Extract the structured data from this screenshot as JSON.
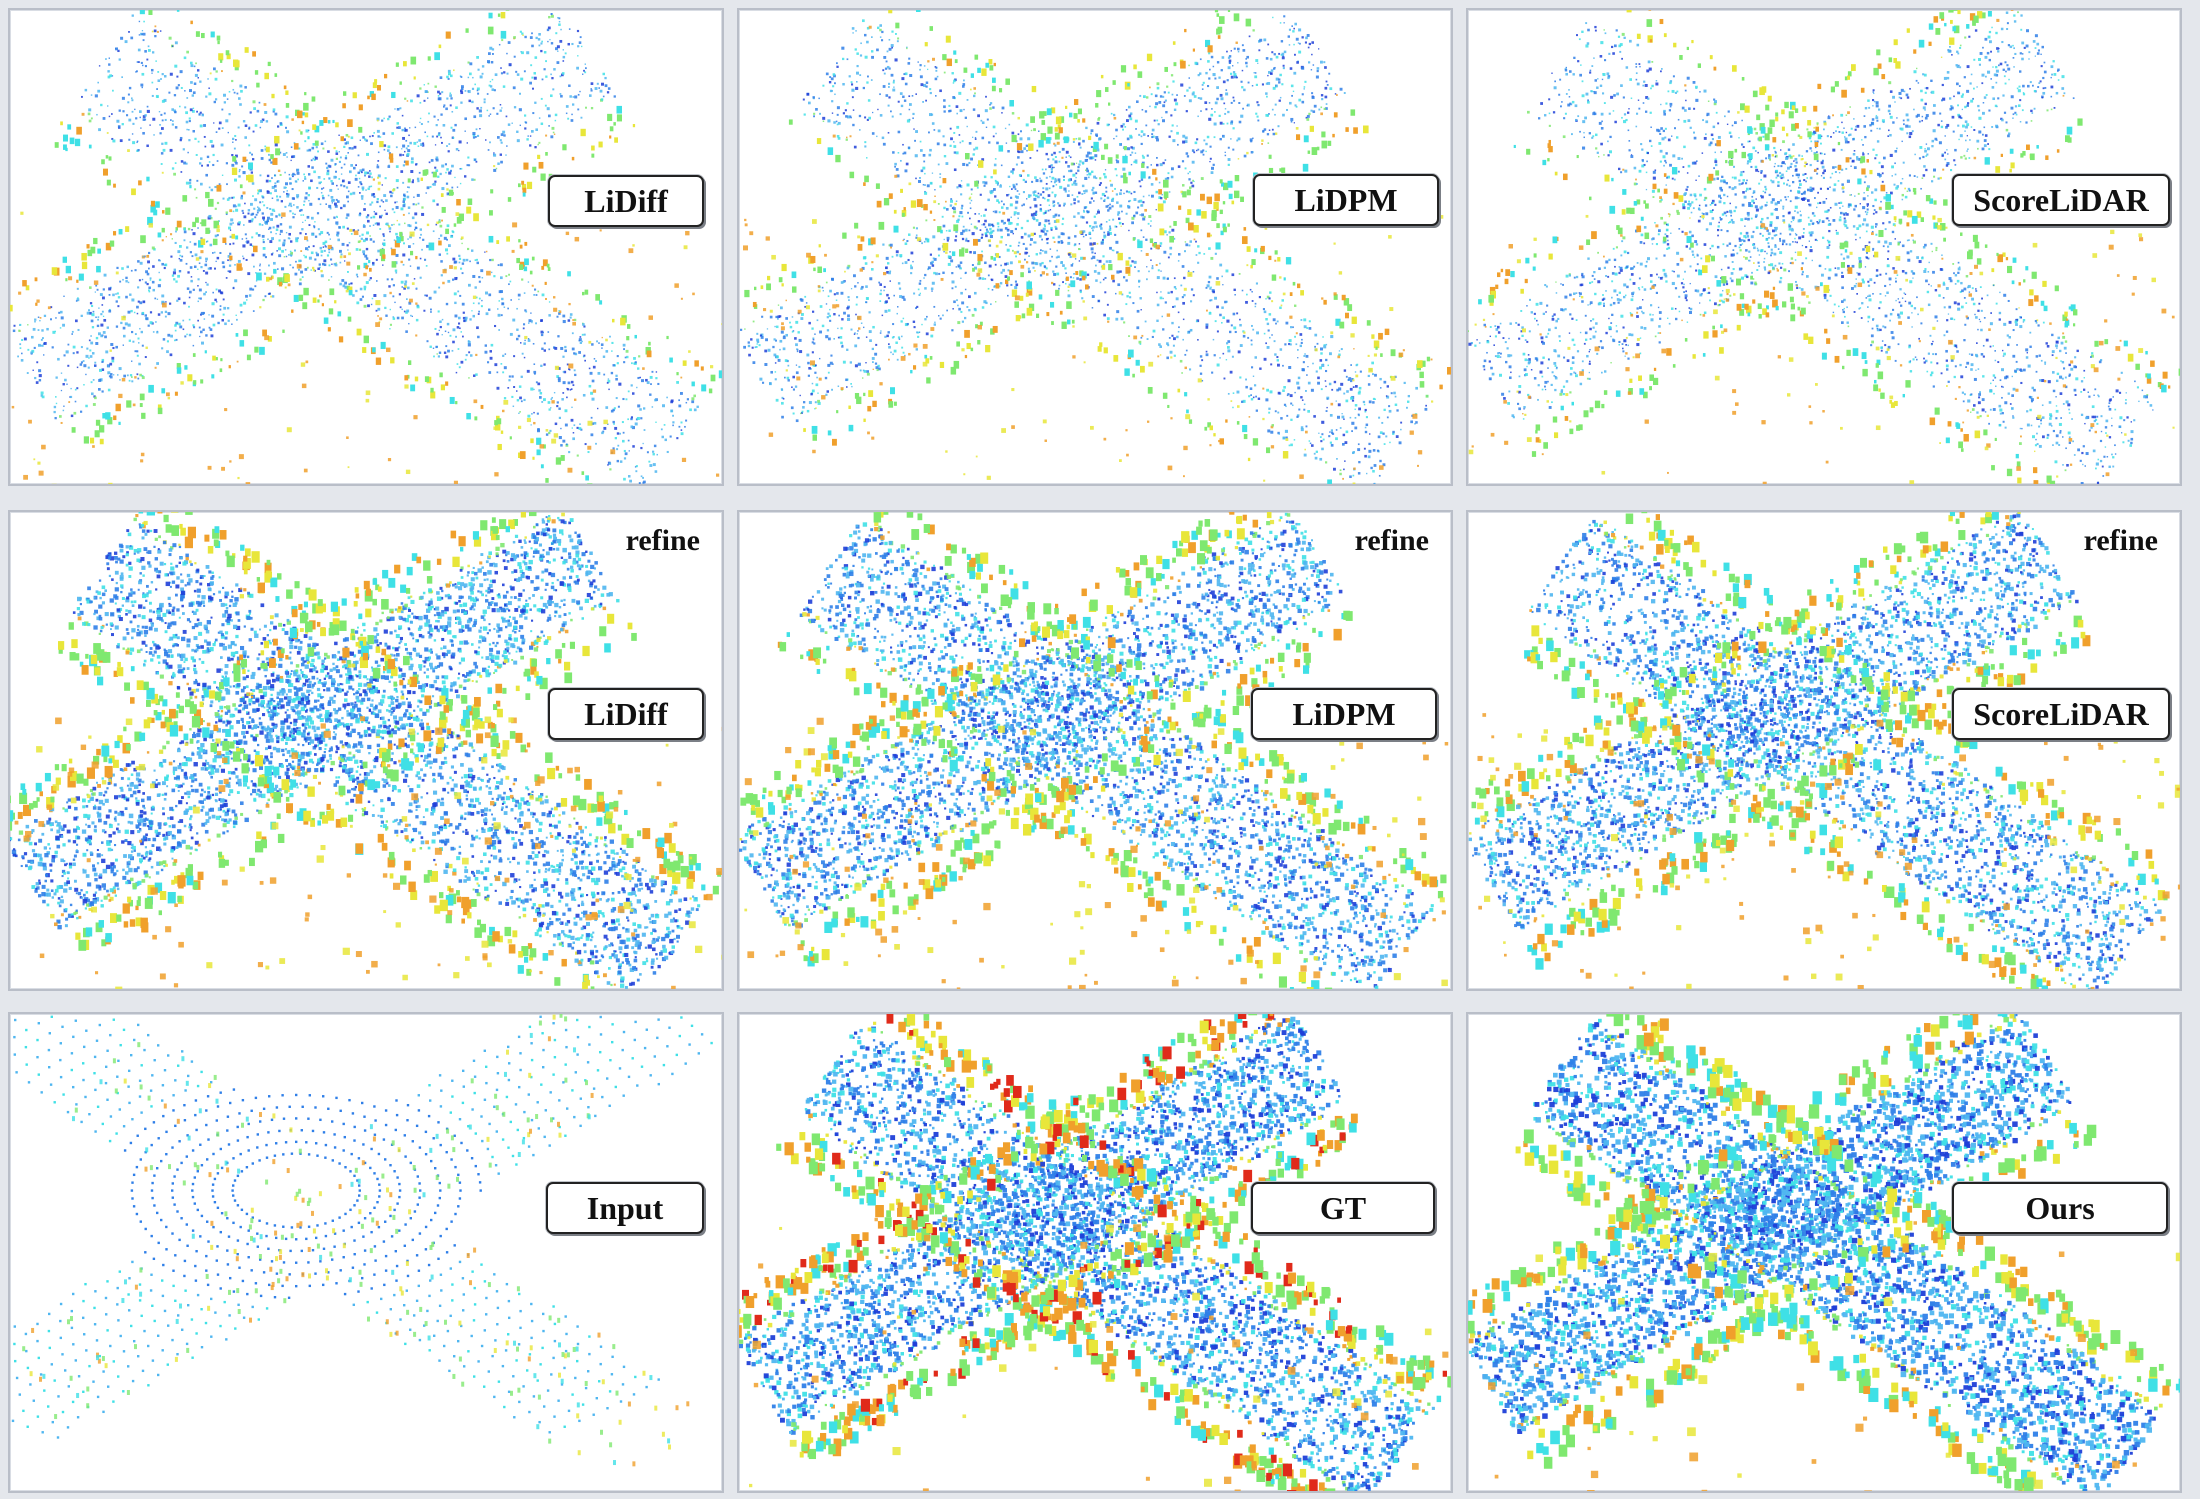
{
  "panels": [
    {
      "method": "LiDiff",
      "refine": "",
      "style": "sparse"
    },
    {
      "method": "LiDPM",
      "refine": "",
      "style": "sparse"
    },
    {
      "method": "ScoreLiDAR",
      "refine": "",
      "style": "sparse"
    },
    {
      "method": "LiDiff",
      "refine": "refine",
      "style": "dense"
    },
    {
      "method": "LiDPM",
      "refine": "refine",
      "style": "dense"
    },
    {
      "method": "ScoreLiDAR",
      "refine": "refine",
      "style": "dense"
    },
    {
      "method": "Input",
      "refine": "",
      "style": "input"
    },
    {
      "method": "GT",
      "refine": "",
      "style": "gt"
    },
    {
      "method": "Ours",
      "refine": "",
      "style": "ours"
    }
  ],
  "colors": {
    "deep_blue": "#1f3fd8",
    "blue": "#2f7fe8",
    "light_blue": "#4fb6f0",
    "cyan": "#3fe0e6",
    "green": "#7fe870",
    "yellow": "#e8e63a",
    "orange": "#f0a02c",
    "red": "#e02a1a"
  }
}
